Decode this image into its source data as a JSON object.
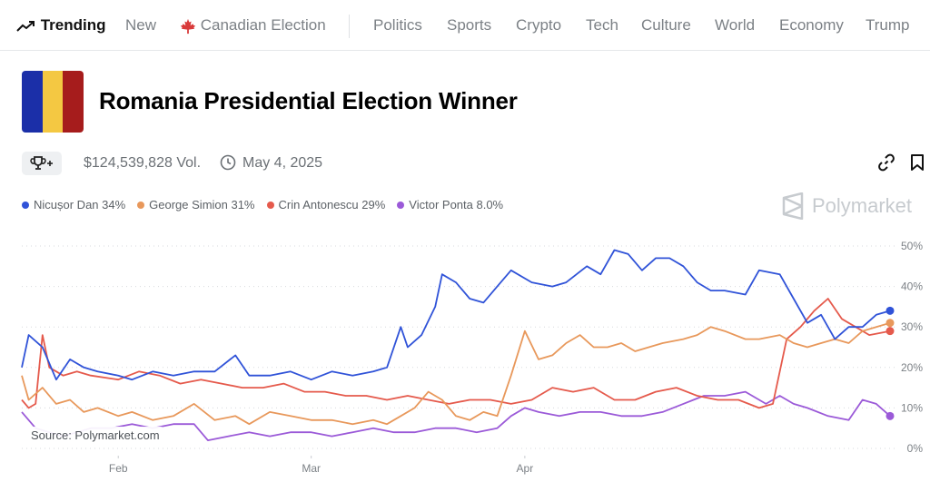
{
  "nav": {
    "items": [
      {
        "label": "Trending",
        "name": "nav-trending"
      },
      {
        "label": "New",
        "name": "nav-new"
      },
      {
        "label": "Canadian Election",
        "name": "nav-canadian-election"
      },
      {
        "label": "Politics",
        "name": "nav-politics"
      },
      {
        "label": "Sports",
        "name": "nav-sports"
      },
      {
        "label": "Crypto",
        "name": "nav-crypto"
      },
      {
        "label": "Tech",
        "name": "nav-tech"
      },
      {
        "label": "Culture",
        "name": "nav-culture"
      },
      {
        "label": "World",
        "name": "nav-world"
      },
      {
        "label": "Economy",
        "name": "nav-economy"
      },
      {
        "label": "Trump",
        "name": "nav-trump"
      }
    ]
  },
  "market": {
    "title": "Romania Presidential Election Winner",
    "volume": "$124,539,828 Vol.",
    "date": "May 4, 2025",
    "flag_colors": [
      "#1b2fa8",
      "#f4c842",
      "#a61c1c"
    ]
  },
  "watermark": "Polymarket",
  "source": "Source: Polymarket.com",
  "chart_data": {
    "type": "line",
    "x_labels": [
      "Feb",
      "Mar",
      "Apr"
    ],
    "y_ticks": [
      "0%",
      "10%",
      "20%",
      "30%",
      "40%",
      "50%"
    ],
    "ylim": [
      0,
      50
    ],
    "grid": true,
    "series": [
      {
        "name": "Nicușor Dan",
        "legend": "Nicușor Dan 34%",
        "color": "#3053d8",
        "points": [
          [
            "01-18",
            20
          ],
          [
            "01-19",
            28
          ],
          [
            "01-21",
            25
          ],
          [
            "01-23",
            17
          ],
          [
            "01-25",
            22
          ],
          [
            "01-27",
            20
          ],
          [
            "01-29",
            19
          ],
          [
            "02-01",
            18
          ],
          [
            "02-03",
            17
          ],
          [
            "02-06",
            19
          ],
          [
            "02-09",
            18
          ],
          [
            "02-12",
            19
          ],
          [
            "02-15",
            19
          ],
          [
            "02-18",
            23
          ],
          [
            "02-20",
            18
          ],
          [
            "02-23",
            18
          ],
          [
            "02-26",
            19
          ],
          [
            "03-01",
            17
          ],
          [
            "03-04",
            19
          ],
          [
            "03-07",
            18
          ],
          [
            "03-10",
            19
          ],
          [
            "03-12",
            20
          ],
          [
            "03-14",
            30
          ],
          [
            "03-15",
            25
          ],
          [
            "03-17",
            28
          ],
          [
            "03-19",
            35
          ],
          [
            "03-20",
            43
          ],
          [
            "03-22",
            41
          ],
          [
            "03-24",
            37
          ],
          [
            "03-26",
            36
          ],
          [
            "03-28",
            40
          ],
          [
            "03-30",
            44
          ],
          [
            "04-02",
            41
          ],
          [
            "04-05",
            40
          ],
          [
            "04-07",
            41
          ],
          [
            "04-10",
            45
          ],
          [
            "04-12",
            43
          ],
          [
            "04-14",
            49
          ],
          [
            "04-16",
            48
          ],
          [
            "04-18",
            44
          ],
          [
            "04-20",
            47
          ],
          [
            "04-22",
            47
          ],
          [
            "04-24",
            45
          ],
          [
            "04-26",
            41
          ],
          [
            "04-28",
            39
          ],
          [
            "04-30",
            39
          ],
          [
            "05-03",
            38
          ],
          [
            "05-05",
            44
          ],
          [
            "05-08",
            43
          ],
          [
            "05-10",
            37
          ],
          [
            "05-12",
            31
          ],
          [
            "05-14",
            33
          ],
          [
            "05-16",
            27
          ],
          [
            "05-18",
            30
          ],
          [
            "05-20",
            30
          ],
          [
            "05-22",
            33
          ],
          [
            "05-24",
            34
          ]
        ],
        "last": 34
      },
      {
        "name": "George Simion",
        "legend": "George Simion 31%",
        "color": "#e8985b",
        "points": [
          [
            "01-18",
            18
          ],
          [
            "01-19",
            12
          ],
          [
            "01-21",
            15
          ],
          [
            "01-23",
            11
          ],
          [
            "01-25",
            12
          ],
          [
            "01-27",
            9
          ],
          [
            "01-29",
            10
          ],
          [
            "02-01",
            8
          ],
          [
            "02-03",
            9
          ],
          [
            "02-06",
            7
          ],
          [
            "02-09",
            8
          ],
          [
            "02-12",
            11
          ],
          [
            "02-15",
            7
          ],
          [
            "02-18",
            8
          ],
          [
            "02-20",
            6
          ],
          [
            "02-23",
            9
          ],
          [
            "02-26",
            8
          ],
          [
            "03-01",
            7
          ],
          [
            "03-04",
            7
          ],
          [
            "03-07",
            6
          ],
          [
            "03-10",
            7
          ],
          [
            "03-12",
            6
          ],
          [
            "03-14",
            8
          ],
          [
            "03-16",
            10
          ],
          [
            "03-18",
            14
          ],
          [
            "03-20",
            12
          ],
          [
            "03-22",
            8
          ],
          [
            "03-24",
            7
          ],
          [
            "03-26",
            9
          ],
          [
            "03-28",
            8
          ],
          [
            "03-30",
            18
          ],
          [
            "04-01",
            29
          ],
          [
            "04-03",
            22
          ],
          [
            "04-05",
            23
          ],
          [
            "04-07",
            26
          ],
          [
            "04-09",
            28
          ],
          [
            "04-11",
            25
          ],
          [
            "04-13",
            25
          ],
          [
            "04-15",
            26
          ],
          [
            "04-17",
            24
          ],
          [
            "04-19",
            25
          ],
          [
            "04-21",
            26
          ],
          [
            "04-24",
            27
          ],
          [
            "04-26",
            28
          ],
          [
            "04-28",
            30
          ],
          [
            "04-30",
            29
          ],
          [
            "05-03",
            27
          ],
          [
            "05-05",
            27
          ],
          [
            "05-08",
            28
          ],
          [
            "05-10",
            26
          ],
          [
            "05-12",
            25
          ],
          [
            "05-14",
            26
          ],
          [
            "05-16",
            27
          ],
          [
            "05-18",
            26
          ],
          [
            "05-20",
            29
          ],
          [
            "05-22",
            30
          ],
          [
            "05-24",
            31
          ]
        ],
        "last": 31
      },
      {
        "name": "Crin Antonescu",
        "legend": "Crin Antonescu 29%",
        "color": "#e55a4c",
        "points": [
          [
            "01-18",
            12
          ],
          [
            "01-19",
            10
          ],
          [
            "01-20",
            11
          ],
          [
            "01-21",
            28
          ],
          [
            "01-22",
            20
          ],
          [
            "01-24",
            18
          ],
          [
            "01-26",
            19
          ],
          [
            "01-28",
            18
          ],
          [
            "02-01",
            17
          ],
          [
            "02-04",
            19
          ],
          [
            "02-07",
            18
          ],
          [
            "02-10",
            16
          ],
          [
            "02-13",
            17
          ],
          [
            "02-16",
            16
          ],
          [
            "02-19",
            15
          ],
          [
            "02-22",
            15
          ],
          [
            "02-25",
            16
          ],
          [
            "02-28",
            14
          ],
          [
            "03-03",
            14
          ],
          [
            "03-06",
            13
          ],
          [
            "03-09",
            13
          ],
          [
            "03-12",
            12
          ],
          [
            "03-15",
            13
          ],
          [
            "03-18",
            12
          ],
          [
            "03-21",
            11
          ],
          [
            "03-24",
            12
          ],
          [
            "03-27",
            12
          ],
          [
            "03-30",
            11
          ],
          [
            "04-02",
            12
          ],
          [
            "04-05",
            15
          ],
          [
            "04-08",
            14
          ],
          [
            "04-11",
            15
          ],
          [
            "04-14",
            12
          ],
          [
            "04-17",
            12
          ],
          [
            "04-20",
            14
          ],
          [
            "04-23",
            15
          ],
          [
            "04-26",
            13
          ],
          [
            "04-29",
            12
          ],
          [
            "05-02",
            12
          ],
          [
            "05-05",
            10
          ],
          [
            "05-07",
            11
          ],
          [
            "05-09",
            27
          ],
          [
            "05-11",
            30
          ],
          [
            "05-13",
            34
          ],
          [
            "05-15",
            37
          ],
          [
            "05-17",
            32
          ],
          [
            "05-19",
            30
          ],
          [
            "05-21",
            28
          ],
          [
            "05-24",
            29
          ]
        ],
        "last": 29
      },
      {
        "name": "Victor Ponta",
        "legend": "Victor Ponta 8.0%",
        "color": "#9b5ad8",
        "points": [
          [
            "01-18",
            9
          ],
          [
            "01-20",
            5
          ],
          [
            "01-22",
            4
          ],
          [
            "01-24",
            3
          ],
          [
            "01-26",
            4
          ],
          [
            "01-28",
            5
          ],
          [
            "01-31",
            5
          ],
          [
            "02-03",
            6
          ],
          [
            "02-06",
            5
          ],
          [
            "02-09",
            6
          ],
          [
            "02-12",
            6
          ],
          [
            "02-14",
            2
          ],
          [
            "02-17",
            3
          ],
          [
            "02-20",
            4
          ],
          [
            "02-23",
            3
          ],
          [
            "02-26",
            4
          ],
          [
            "03-01",
            4
          ],
          [
            "03-04",
            3
          ],
          [
            "03-07",
            4
          ],
          [
            "03-10",
            5
          ],
          [
            "03-13",
            4
          ],
          [
            "03-16",
            4
          ],
          [
            "03-19",
            5
          ],
          [
            "03-22",
            5
          ],
          [
            "03-25",
            4
          ],
          [
            "03-28",
            5
          ],
          [
            "03-30",
            8
          ],
          [
            "04-01",
            10
          ],
          [
            "04-03",
            9
          ],
          [
            "04-06",
            8
          ],
          [
            "04-09",
            9
          ],
          [
            "04-12",
            9
          ],
          [
            "04-15",
            8
          ],
          [
            "04-18",
            8
          ],
          [
            "04-21",
            9
          ],
          [
            "04-24",
            11
          ],
          [
            "04-27",
            13
          ],
          [
            "04-30",
            13
          ],
          [
            "05-03",
            14
          ],
          [
            "05-06",
            11
          ],
          [
            "05-08",
            13
          ],
          [
            "05-10",
            11
          ],
          [
            "05-12",
            10
          ],
          [
            "05-15",
            8
          ],
          [
            "05-18",
            7
          ],
          [
            "05-20",
            12
          ],
          [
            "05-22",
            11
          ],
          [
            "05-24",
            8
          ]
        ],
        "last": 8
      }
    ]
  }
}
